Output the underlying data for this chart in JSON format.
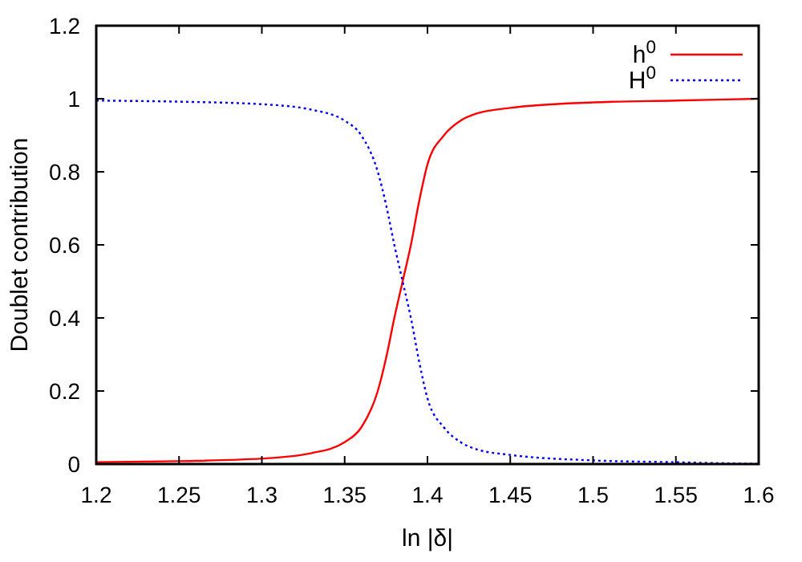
{
  "chart_data": {
    "type": "line",
    "xlabel": "ln |δ|",
    "ylabel": "Doublet contribution",
    "x": [
      1.2,
      1.25,
      1.3,
      1.33,
      1.35,
      1.36,
      1.37,
      1.375,
      1.38,
      1.385,
      1.39,
      1.395,
      1.4,
      1.41,
      1.42,
      1.43,
      1.45,
      1.5,
      1.55,
      1.6
    ],
    "series": [
      {
        "name": "h$^{0}$",
        "color": "#ff0000",
        "line_style": "solid",
        "values": [
          0.005,
          0.008,
          0.015,
          0.03,
          0.06,
          0.1,
          0.2,
          0.29,
          0.4,
          0.5,
          0.6,
          0.72,
          0.82,
          0.9,
          0.94,
          0.96,
          0.975,
          0.99,
          0.995,
          1.0
        ]
      },
      {
        "name": "H$^{0}$",
        "color": "#0000ff",
        "line_style": "dotted",
        "values": [
          0.995,
          0.992,
          0.985,
          0.97,
          0.94,
          0.9,
          0.8,
          0.71,
          0.6,
          0.5,
          0.4,
          0.28,
          0.18,
          0.1,
          0.06,
          0.04,
          0.025,
          0.01,
          0.005,
          0.0
        ]
      }
    ],
    "xlim": [
      1.2,
      1.6
    ],
    "xticks": [
      1.2,
      1.25,
      1.3,
      1.35,
      1.4,
      1.45,
      1.5,
      1.55,
      1.6
    ],
    "ylim": [
      0,
      1.2
    ],
    "yticks": [
      0,
      0.2,
      0.4,
      0.6,
      0.8,
      1,
      1.2
    ],
    "legend": "top right",
    "grid": false
  }
}
